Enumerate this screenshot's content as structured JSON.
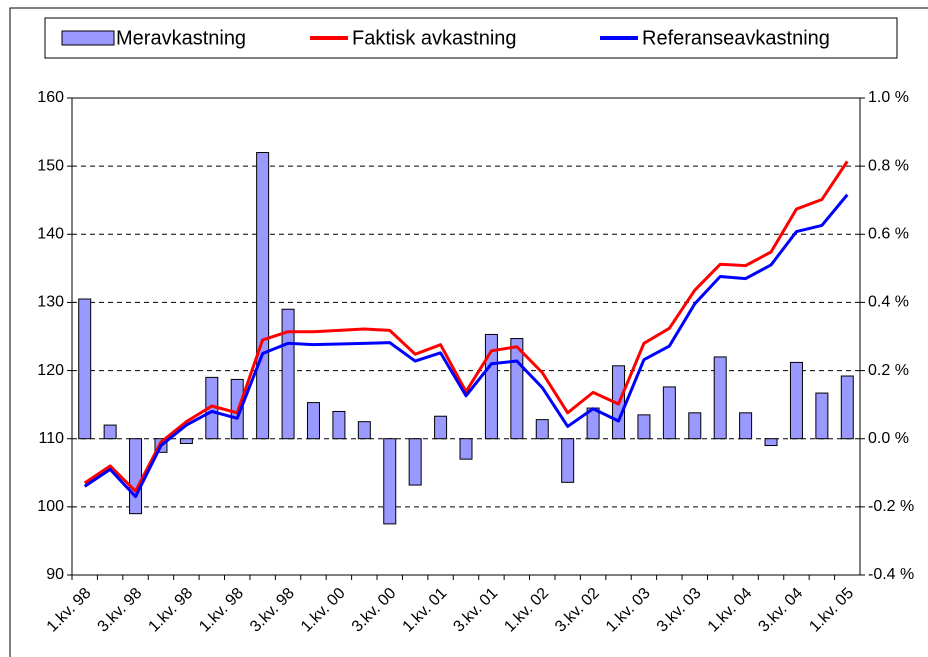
{
  "chart_data": {
    "type": "bar-line",
    "categories": [
      "1.kv. 98",
      null,
      "3.kv. 98",
      null,
      "1.kv. 98",
      null,
      "1.kv. 98",
      null,
      "3.kv. 98",
      null,
      "1.kv. 00",
      null,
      "3.kv. 00",
      null,
      "1.kv. 01",
      null,
      "3.kv. 01",
      null,
      "1.kv. 02",
      null,
      "3.kv. 02",
      null,
      "1.kv. 03",
      null,
      "3.kv. 03",
      null,
      "1.kv. 04",
      null,
      "3.kv. 04",
      null,
      "1.kv. 05"
    ],
    "series": [
      {
        "name": "Meravkastning",
        "kind": "bar",
        "axis": "y2",
        "color": "#9999ff",
        "values": [
          0.41,
          0.04,
          -0.22,
          -0.04,
          -0.014,
          0.18,
          0.174,
          0.84,
          0.38,
          0.106,
          0.08,
          0.05,
          -0.25,
          -0.136,
          0.066,
          -0.06,
          0.306,
          0.294,
          0.056,
          -0.128,
          0.09,
          0.214,
          0.07,
          0.152,
          0.076,
          0.24,
          0.076,
          -0.02,
          0.224,
          0.134,
          0.184
        ]
      },
      {
        "name": "Faktisk avkastning",
        "kind": "line",
        "color": "#ff0000",
        "values": [
          103.5,
          106,
          102.3,
          109.5,
          112.5,
          114.8,
          113.8,
          124.5,
          125.7,
          125.7,
          125.9,
          126.1,
          125.9,
          122.4,
          123.8,
          116.9,
          122.9,
          123.5,
          119.7,
          113.8,
          116.8,
          115.1,
          124,
          126.2,
          131.8,
          135.6,
          135.4,
          137.4,
          143.7,
          145.1,
          150.7
        ]
      },
      {
        "name": "Referanseavkastning",
        "kind": "line",
        "color": "#0000ff",
        "values": [
          103,
          105.5,
          101.5,
          109,
          112,
          114,
          113,
          122.5,
          124,
          123.8,
          123.9,
          124,
          124.1,
          121.4,
          122.6,
          116.3,
          121,
          121.4,
          117.5,
          111.8,
          114.4,
          112.6,
          121.6,
          123.6,
          129.8,
          133.8,
          133.5,
          135.5,
          140.4,
          141.3,
          145.8
        ]
      }
    ],
    "ylim": [
      90,
      160
    ],
    "yticks": [
      90,
      100,
      110,
      120,
      130,
      140,
      150,
      160
    ],
    "y2lim": [
      -0.4,
      1.0
    ],
    "y2ticks": [
      {
        "value": -0.4,
        "label": "-0.4 %"
      },
      {
        "value": -0.2,
        "label": "-0.2 %"
      },
      {
        "value": 0,
        "label": "0.0 %"
      },
      {
        "value": 0.2,
        "label": "0.2 %"
      },
      {
        "value": 0.4,
        "label": "0.4 %"
      },
      {
        "value": 0.6,
        "label": "0.6 %"
      },
      {
        "value": 0.8,
        "label": "0.8 %"
      },
      {
        "value": 1.0,
        "label": "1.0 %"
      }
    ],
    "grid": true,
    "legend": "top"
  }
}
